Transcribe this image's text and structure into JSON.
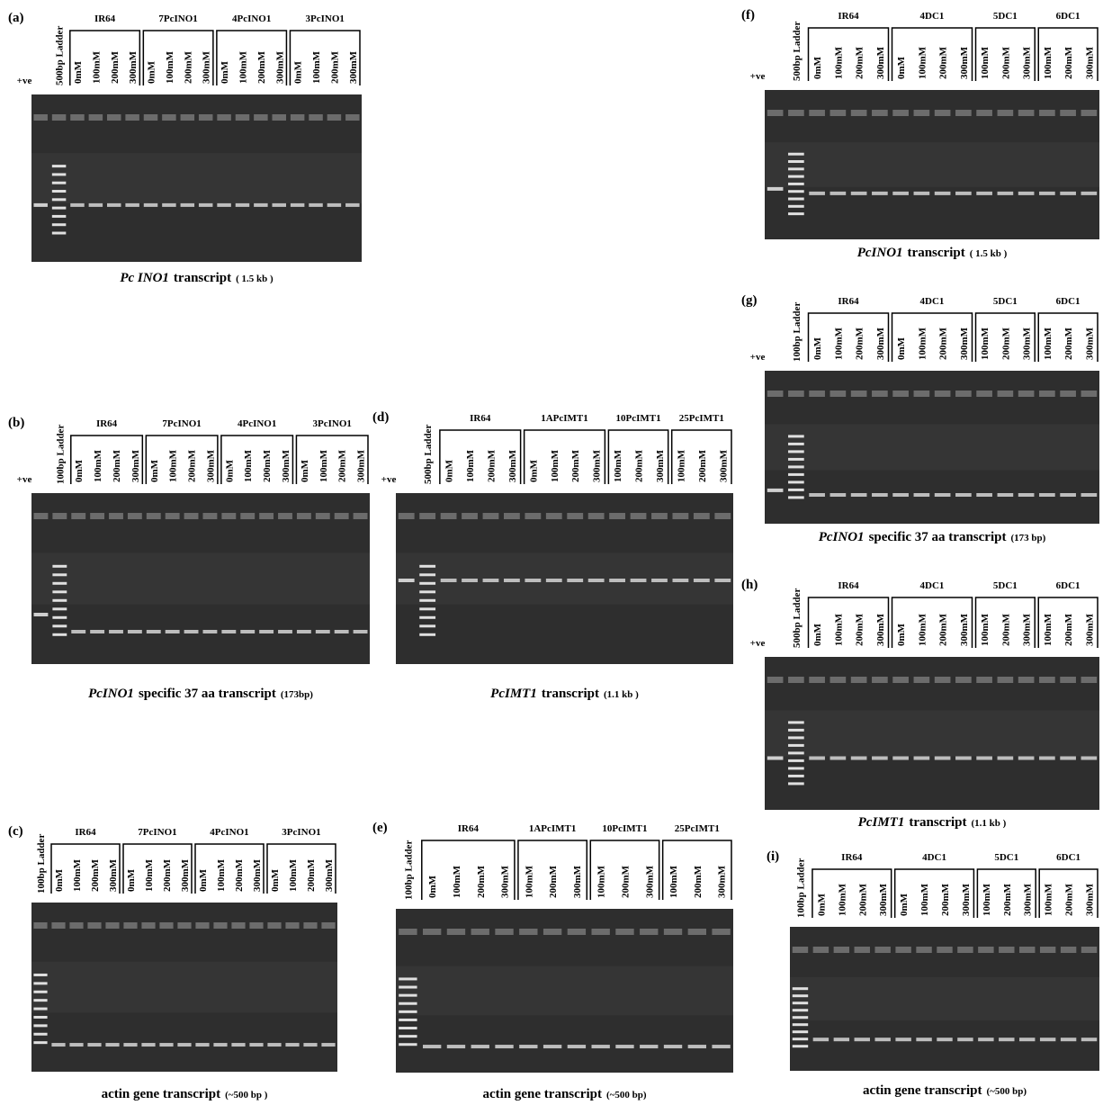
{
  "panels": [
    {
      "letter": "(a)",
      "positive": "+ve",
      "ladder": "500bp Ladder",
      "groups": [
        {
          "name": "IR64",
          "lanes": [
            "0mM",
            "100mM",
            "200mM",
            "300mM"
          ]
        },
        {
          "name": "7PcINO1",
          "lanes": [
            "0mM",
            "100mM",
            "200mM",
            "300mM"
          ]
        },
        {
          "name": "4PcINO1",
          "lanes": [
            "0mM",
            "100mM",
            "200mM",
            "300mM"
          ]
        },
        {
          "name": "3PcINO1",
          "lanes": [
            "0mM",
            "100mM",
            "200mM",
            "300mM"
          ]
        }
      ],
      "caption": {
        "gene": "Pc INO1",
        "rest": "transcript",
        "size": "( 1.5 kb )"
      }
    },
    {
      "letter": "(b)",
      "positive": "+ve",
      "ladder": "100bp Ladder",
      "groups": [
        {
          "name": "IR64",
          "lanes": [
            "0mM",
            "100mM",
            "200mM",
            "300mM"
          ]
        },
        {
          "name": "7PcINO1",
          "lanes": [
            "0mM",
            "100mM",
            "200mM",
            "300mM"
          ]
        },
        {
          "name": "4PcINO1",
          "lanes": [
            "0mM",
            "100mM",
            "200mM",
            "300mM"
          ]
        },
        {
          "name": "3PcINO1",
          "lanes": [
            "0mM",
            "100mM",
            "200mM",
            "300mM"
          ]
        }
      ],
      "caption": {
        "gene": "PcINO1",
        "rest": "specific 37 aa transcript",
        "size": "(173bp)"
      }
    },
    {
      "letter": "(c)",
      "ladder": "100bp Ladder",
      "groups": [
        {
          "name": "IR64",
          "lanes": [
            "0mM",
            "100mM",
            "200mM",
            "300mM"
          ]
        },
        {
          "name": "7PcINO1",
          "lanes": [
            "0mM",
            "100mM",
            "200mM",
            "300mM"
          ]
        },
        {
          "name": "4PcINO1",
          "lanes": [
            "0mM",
            "100mM",
            "200mM",
            "300mM"
          ]
        },
        {
          "name": "3PcINO1",
          "lanes": [
            "0mM",
            "100mM",
            "200mM",
            "300mM"
          ]
        }
      ],
      "caption": {
        "gene": "",
        "rest": "actin gene transcript",
        "size": "(~500 bp )"
      }
    },
    {
      "letter": "(d)",
      "positive": "+ve",
      "ladder": "500bp Ladder",
      "groups": [
        {
          "name": "IR64",
          "lanes": [
            "0mM",
            "100mM",
            "200mM",
            "300mM"
          ]
        },
        {
          "name": "1APcIMT1",
          "lanes": [
            "0mM",
            "100mM",
            "200mM",
            "300mM"
          ]
        },
        {
          "name": "10PcIMT1",
          "lanes": [
            "100mM",
            "200mM",
            "300mM"
          ]
        },
        {
          "name": "25PcIMT1",
          "lanes": [
            "100mM",
            "200mM",
            "300mM"
          ]
        }
      ],
      "caption": {
        "gene": "PcIMT1",
        "rest": "transcript",
        "size": "(1.1 kb )"
      }
    },
    {
      "letter": "(e)",
      "ladder": "100bp Ladder",
      "groups": [
        {
          "name": "IR64",
          "lanes": [
            "0mM",
            "100mM",
            "200mM",
            "300mM"
          ]
        },
        {
          "name": "1APcIMT1",
          "lanes": [
            "100mM",
            "200mM",
            "300mM"
          ]
        },
        {
          "name": "10PcIMT1",
          "lanes": [
            "100mM",
            "200mM",
            "300mM"
          ]
        },
        {
          "name": "25PcIMT1",
          "lanes": [
            "100mM",
            "200mM",
            "300mM"
          ]
        }
      ],
      "caption": {
        "gene": "",
        "rest": "actin gene transcript",
        "size": "(~500 bp)"
      }
    },
    {
      "letter": "(f)",
      "positive": "+ve",
      "ladder": "500bp Ladder",
      "groups": [
        {
          "name": "IR64",
          "lanes": [
            "0mM",
            "100mM",
            "200mM",
            "300mM"
          ]
        },
        {
          "name": "4DC1",
          "lanes": [
            "0mM",
            "100mM",
            "200mM",
            "300mM"
          ]
        },
        {
          "name": "5DC1",
          "lanes": [
            "100mM",
            "200mM",
            "300mM"
          ]
        },
        {
          "name": "6DC1",
          "lanes": [
            "100mM",
            "200mM",
            "300mM"
          ]
        }
      ],
      "caption": {
        "gene": "PcINO1",
        "rest": "transcript",
        "size": "( 1.5 kb )"
      }
    },
    {
      "letter": "(g)",
      "positive": "+ve",
      "ladder": "100bp Ladder",
      "groups": [
        {
          "name": "IR64",
          "lanes": [
            "0mM",
            "100mM",
            "200mM",
            "300mM"
          ]
        },
        {
          "name": "4DC1",
          "lanes": [
            "0mM",
            "100mM",
            "200mM",
            "300mM"
          ]
        },
        {
          "name": "5DC1",
          "lanes": [
            "100mM",
            "200mM",
            "300mM"
          ]
        },
        {
          "name": "6DC1",
          "lanes": [
            "100mM",
            "200mM",
            "300mM"
          ]
        }
      ],
      "caption": {
        "gene": "PcINO1",
        "rest": "specific 37 aa transcript",
        "size": "(173 bp)"
      }
    },
    {
      "letter": "(h)",
      "positive": "+ve",
      "ladder": "500bp Ladder",
      "groups": [
        {
          "name": "IR64",
          "lanes": [
            "0mM",
            "100mM",
            "200mM",
            "300mM"
          ]
        },
        {
          "name": "4DC1",
          "lanes": [
            "0mM",
            "100mM",
            "200mM",
            "300mM"
          ]
        },
        {
          "name": "5DC1",
          "lanes": [
            "100mM",
            "200mM",
            "300mM"
          ]
        },
        {
          "name": "6DC1",
          "lanes": [
            "100mM",
            "200mM",
            "300mM"
          ]
        }
      ],
      "caption": {
        "gene": "PcIMT1",
        "rest": "transcript",
        "size": "(1.1 kb )"
      }
    },
    {
      "letter": "(i)",
      "ladder": "100bp Ladder",
      "groups": [
        {
          "name": "IR64",
          "lanes": [
            "0mM",
            "100mM",
            "200mM",
            "300mM"
          ]
        },
        {
          "name": "4DC1",
          "lanes": [
            "0mM",
            "100mM",
            "200mM",
            "300mM"
          ]
        },
        {
          "name": "5DC1",
          "lanes": [
            "100mM",
            "200mM",
            "300mM"
          ]
        },
        {
          "name": "6DC1",
          "lanes": [
            "100mM",
            "200mM",
            "300mM"
          ]
        }
      ],
      "caption": {
        "gene": "",
        "rest": "actin gene transcript",
        "size": "(~500 bp)"
      }
    }
  ]
}
